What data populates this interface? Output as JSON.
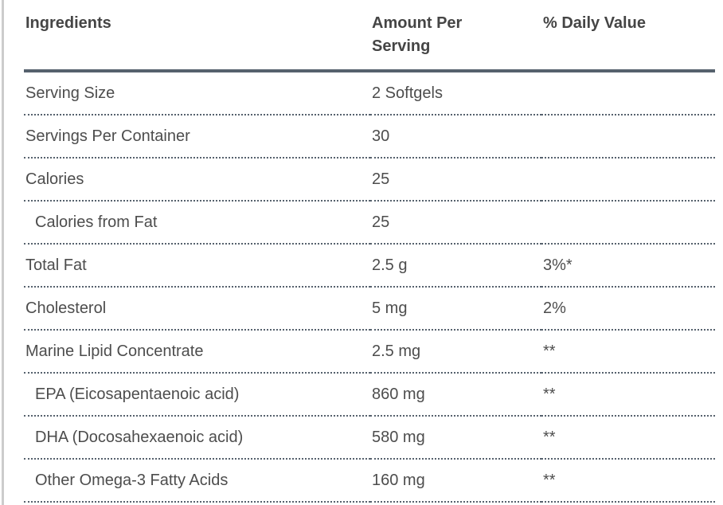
{
  "page": {
    "background_color": "#ffffff",
    "left_edge_bar_color": "#cccccc"
  },
  "table": {
    "columns": [
      {
        "label": "Ingredients"
      },
      {
        "label": "Amount Per Serving"
      },
      {
        "label": "% Daily Value"
      }
    ],
    "rows": [
      {
        "ingredient": "Serving Size",
        "amount": "2 Softgels",
        "daily_value": "",
        "indent": false
      },
      {
        "ingredient": "Servings Per Container",
        "amount": "30",
        "daily_value": "",
        "indent": false
      },
      {
        "ingredient": "Calories",
        "amount": "25",
        "daily_value": "",
        "indent": false
      },
      {
        "ingredient": "Calories from Fat",
        "amount": "25",
        "daily_value": "",
        "indent": true
      },
      {
        "ingredient": "Total Fat",
        "amount": "2.5 g",
        "daily_value": "3%*",
        "indent": false
      },
      {
        "ingredient": "Cholesterol",
        "amount": "5 mg",
        "daily_value": "2%",
        "indent": false
      },
      {
        "ingredient": "Marine Lipid Concentrate",
        "amount": "2.5 mg",
        "daily_value": "**",
        "indent": false
      },
      {
        "ingredient": "EPA (Eicosapentaenoic acid)",
        "amount": "860 mg",
        "daily_value": "**",
        "indent": true
      },
      {
        "ingredient": "DHA (Docosahexaenoic acid)",
        "amount": "580 mg",
        "daily_value": "**",
        "indent": true
      },
      {
        "ingredient": "Other Omega-3 Fatty Acids",
        "amount": "160 mg",
        "daily_value": "**",
        "indent": true
      }
    ],
    "style": {
      "header_rule_color": "#56616d",
      "row_rule_color": "#56616d",
      "header_text_color": "#454545",
      "body_text_color": "#4d4d4d"
    }
  }
}
